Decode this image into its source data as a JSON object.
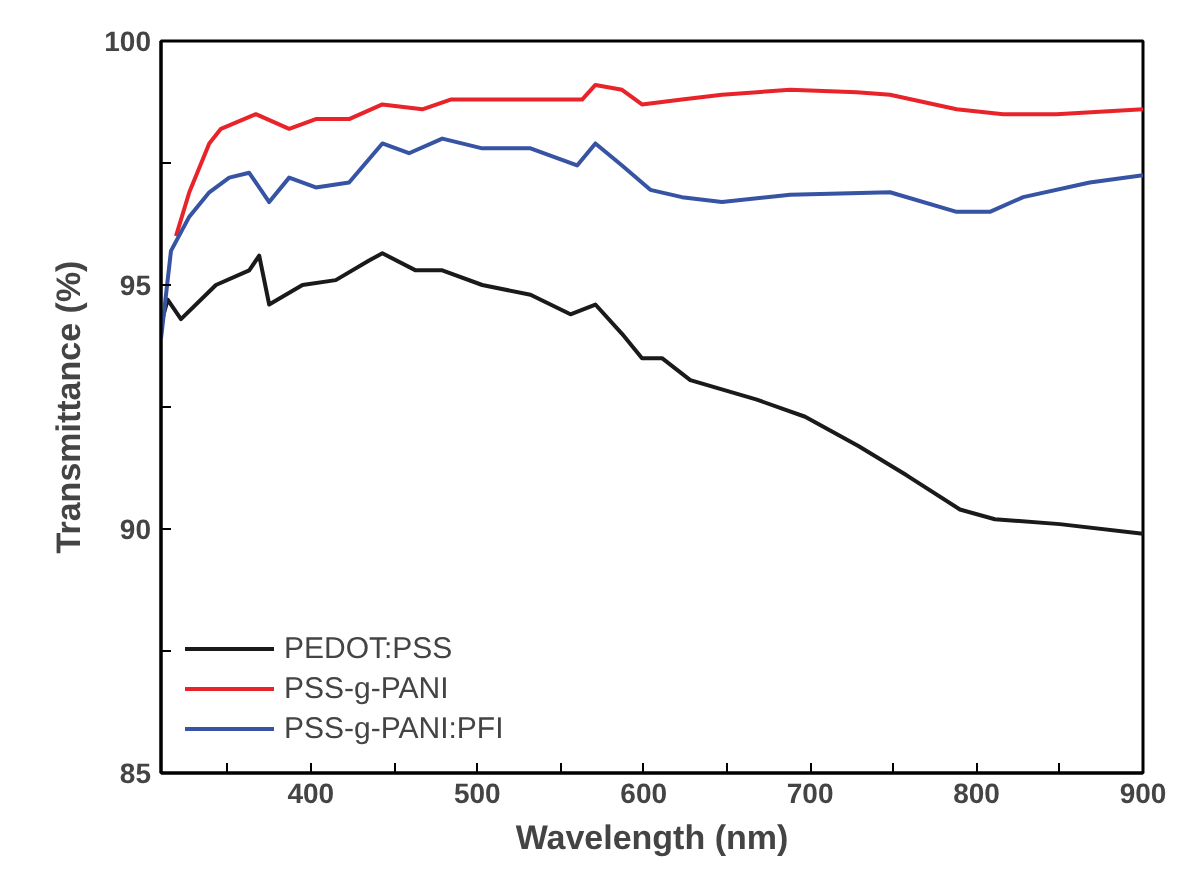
{
  "chart_data": {
    "type": "line",
    "xlabel": "Wavelength (nm)",
    "ylabel": "Transmittance (%)",
    "xlim": [
      310,
      900
    ],
    "ylim": [
      85,
      100
    ],
    "xticks": [
      {
        "value": 350,
        "label": null
      },
      400,
      {
        "value": 450,
        "label": null
      },
      500,
      {
        "value": 550,
        "label": null
      },
      600,
      {
        "value": 650,
        "label": null
      },
      700,
      {
        "value": 750,
        "label": null
      },
      800,
      {
        "value": 850,
        "label": null
      },
      900
    ],
    "yticks": [
      85,
      {
        "value": 87.5,
        "label": null
      },
      90,
      {
        "value": 92.5,
        "label": null
      },
      95,
      {
        "value": 97.5,
        "label": null
      },
      100
    ],
    "grid": false,
    "legend": "bottom left",
    "marker": "none",
    "line_style": "solid",
    "series": [
      {
        "name": "PEDOT:PSS",
        "color": "#1a1a1a",
        "x": [
          310,
          314,
          322,
          343,
          363,
          369,
          375,
          395,
          415,
          435,
          443,
          463,
          479,
          503,
          532,
          556,
          571,
          587,
          599,
          611,
          628,
          648,
          668,
          697,
          729,
          758,
          790,
          811,
          850,
          900
        ],
        "values": [
          94.2,
          94.7,
          94.3,
          95.0,
          95.3,
          95.6,
          94.6,
          95.0,
          95.1,
          95.5,
          95.65,
          95.3,
          95.3,
          95.0,
          94.8,
          94.4,
          94.6,
          94.0,
          93.5,
          93.5,
          93.05,
          92.85,
          92.65,
          92.3,
          91.7,
          91.1,
          90.4,
          90.2,
          90.1,
          89.9
        ]
      },
      {
        "name": "PSS-g-PANI",
        "color": "#e8232a",
        "x": [
          319,
          327,
          339,
          346,
          367,
          387,
          403,
          423,
          443,
          467,
          484,
          503,
          544,
          563,
          571,
          587,
          599,
          623,
          647,
          688,
          728,
          748,
          788,
          816,
          848,
          900
        ],
        "values": [
          96.0,
          96.9,
          97.9,
          98.2,
          98.5,
          98.2,
          98.4,
          98.4,
          98.7,
          98.6,
          98.8,
          98.8,
          98.8,
          98.8,
          99.1,
          99.0,
          98.7,
          98.8,
          98.9,
          99.0,
          98.95,
          98.9,
          98.6,
          98.5,
          98.5,
          98.6
        ]
      },
      {
        "name": "PSS-g-PANI:PFI",
        "color": "#3653a4",
        "x": [
          310,
          316,
          327,
          339,
          351,
          363,
          375,
          387,
          403,
          423,
          443,
          459,
          479,
          503,
          532,
          560,
          571,
          587,
          604,
          623,
          647,
          688,
          748,
          788,
          808,
          828,
          868,
          900
        ],
        "values": [
          93.9,
          95.7,
          96.4,
          96.9,
          97.2,
          97.3,
          96.7,
          97.2,
          97.0,
          97.1,
          97.9,
          97.7,
          98.0,
          97.8,
          97.8,
          97.45,
          97.9,
          97.45,
          96.95,
          96.8,
          96.7,
          96.85,
          96.9,
          96.5,
          96.5,
          96.8,
          97.1,
          97.25
        ]
      }
    ]
  }
}
